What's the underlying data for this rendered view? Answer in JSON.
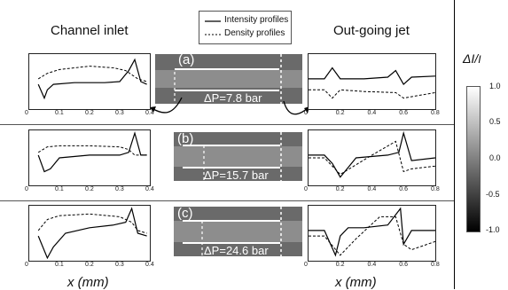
{
  "headers": {
    "left": "Channel inlet",
    "right": "Out-going jet"
  },
  "legend": {
    "intensity": "Intensity profiles",
    "density": "Density profiles"
  },
  "xaxis_label": "x (mm)",
  "colorbar": {
    "label_num": "ΔI",
    "label_den": "I",
    "ticks": [
      "1.0",
      "0.5",
      "0.0",
      "-0.5",
      "-1.0"
    ]
  },
  "left_ticks": [
    "0",
    "0.1",
    "0.2",
    "0.3",
    "0.4"
  ],
  "right_ticks": [
    "0",
    "0.2",
    "0.4",
    "0.6",
    "0.8"
  ],
  "panels": [
    {
      "letter": "(a)",
      "dp": "ΔP=7.8 bar"
    },
    {
      "letter": "(b)",
      "dp": "ΔP=15.7 bar"
    },
    {
      "letter": "(c)",
      "dp": "ΔP=24.6 bar"
    }
  ],
  "chart_data": [
    {
      "type": "line",
      "panel": "a-left",
      "xlim": [
        0,
        0.4
      ],
      "series": [
        {
          "name": "Intensity profiles",
          "x": [
            0.03,
            0.05,
            0.06,
            0.08,
            0.15,
            0.25,
            0.3,
            0.33,
            0.35,
            0.37,
            0.39
          ],
          "y": [
            0.45,
            0.2,
            0.35,
            0.45,
            0.48,
            0.48,
            0.5,
            0.7,
            0.9,
            0.5,
            0.45
          ]
        },
        {
          "name": "Density profiles",
          "x": [
            0.03,
            0.06,
            0.1,
            0.2,
            0.28,
            0.32,
            0.36,
            0.39
          ],
          "y": [
            0.55,
            0.65,
            0.72,
            0.78,
            0.75,
            0.7,
            0.55,
            0.5
          ]
        }
      ]
    },
    {
      "type": "line",
      "panel": "a-right",
      "xlim": [
        0,
        0.8
      ],
      "series": [
        {
          "name": "Intensity profiles",
          "x": [
            0,
            0.1,
            0.15,
            0.2,
            0.35,
            0.5,
            0.55,
            0.6,
            0.65,
            0.8
          ],
          "y": [
            0.55,
            0.55,
            0.75,
            0.55,
            0.55,
            0.58,
            0.7,
            0.45,
            0.58,
            0.6
          ]
        },
        {
          "name": "Density profiles",
          "x": [
            0,
            0.1,
            0.15,
            0.2,
            0.35,
            0.55,
            0.6,
            0.8
          ],
          "y": [
            0.35,
            0.35,
            0.2,
            0.35,
            0.32,
            0.3,
            0.2,
            0.3
          ]
        }
      ]
    },
    {
      "type": "line",
      "panel": "b-left",
      "xlim": [
        0,
        0.4
      ],
      "series": [
        {
          "name": "Intensity profiles",
          "x": [
            0.03,
            0.05,
            0.07,
            0.1,
            0.2,
            0.3,
            0.33,
            0.35,
            0.37,
            0.39
          ],
          "y": [
            0.55,
            0.25,
            0.3,
            0.5,
            0.55,
            0.55,
            0.6,
            0.95,
            0.55,
            0.55
          ]
        },
        {
          "name": "Density profiles",
          "x": [
            0.03,
            0.06,
            0.1,
            0.2,
            0.3,
            0.33,
            0.35,
            0.39
          ],
          "y": [
            0.6,
            0.7,
            0.72,
            0.72,
            0.7,
            0.65,
            0.55,
            0.55
          ]
        }
      ]
    },
    {
      "type": "line",
      "panel": "b-right",
      "xlim": [
        0,
        0.8
      ],
      "series": [
        {
          "name": "Intensity profiles",
          "x": [
            0,
            0.1,
            0.15,
            0.2,
            0.3,
            0.5,
            0.57,
            0.6,
            0.65,
            0.8
          ],
          "y": [
            0.55,
            0.55,
            0.4,
            0.15,
            0.5,
            0.55,
            0.6,
            0.95,
            0.45,
            0.5
          ]
        },
        {
          "name": "Density profiles",
          "x": [
            0,
            0.1,
            0.2,
            0.4,
            0.55,
            0.6,
            0.65,
            0.8
          ],
          "y": [
            0.5,
            0.5,
            0.2,
            0.55,
            0.8,
            0.25,
            0.3,
            0.35
          ]
        }
      ]
    },
    {
      "type": "line",
      "panel": "c-left",
      "xlim": [
        0,
        0.4
      ],
      "series": [
        {
          "name": "Intensity profiles",
          "x": [
            0.03,
            0.06,
            0.08,
            0.12,
            0.2,
            0.28,
            0.32,
            0.34,
            0.36,
            0.39
          ],
          "y": [
            0.45,
            0.05,
            0.25,
            0.5,
            0.6,
            0.65,
            0.7,
            0.95,
            0.5,
            0.45
          ]
        },
        {
          "name": "Density profiles",
          "x": [
            0.03,
            0.06,
            0.1,
            0.2,
            0.3,
            0.34,
            0.36,
            0.39
          ],
          "y": [
            0.55,
            0.75,
            0.82,
            0.85,
            0.8,
            0.7,
            0.55,
            0.5
          ]
        }
      ]
    },
    {
      "type": "line",
      "panel": "c-right",
      "xlim": [
        0,
        0.8
      ],
      "series": [
        {
          "name": "Intensity profiles",
          "x": [
            0,
            0.1,
            0.17,
            0.2,
            0.25,
            0.35,
            0.5,
            0.58,
            0.6,
            0.65,
            0.8
          ],
          "y": [
            0.55,
            0.55,
            0.1,
            0.45,
            0.6,
            0.6,
            0.65,
            0.95,
            0.3,
            0.55,
            0.55
          ]
        },
        {
          "name": "Density profiles",
          "x": [
            0,
            0.1,
            0.2,
            0.3,
            0.45,
            0.55,
            0.6,
            0.65,
            0.8
          ],
          "y": [
            0.45,
            0.45,
            0.1,
            0.4,
            0.8,
            0.8,
            0.3,
            0.2,
            0.35
          ]
        }
      ]
    }
  ]
}
